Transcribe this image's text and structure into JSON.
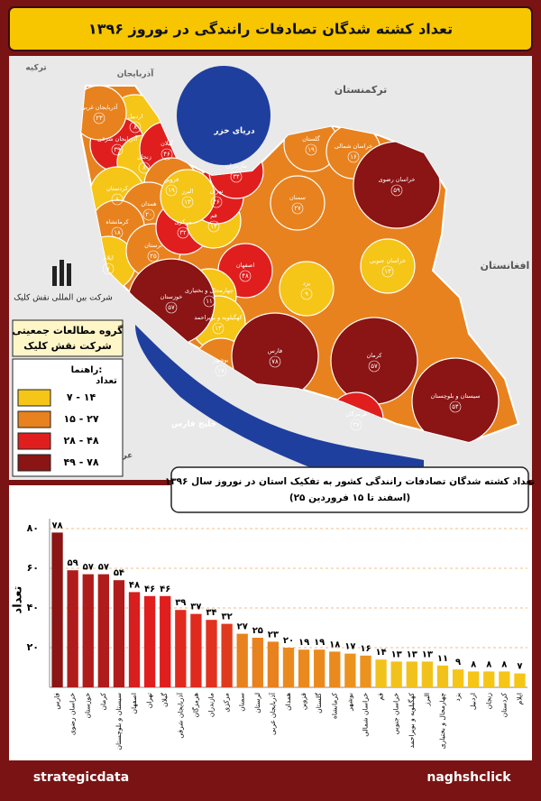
{
  "header": {
    "title": "تعداد کشته شدگان تصادفات رانندگی در نوروز ۱۳۹۶"
  },
  "map": {
    "labels": [
      "ترکمنستان",
      "افغانستان",
      "دریای خزر",
      "خلیج فارس",
      "عربستان سعودی",
      "ترکیه",
      "آذربایجان"
    ],
    "group": [
      "گروه مطالعات جمعیتی",
      "شرکت نقش کلیک"
    ],
    "logo": "شرکت بین المللی نقش کلیک",
    "legend": {
      "title": "راهنما:",
      "heading": "تعداد",
      "classes": [
        {
          "label": "۷ - ۱۴",
          "min": 7,
          "max": 14,
          "color": "#f5c518"
        },
        {
          "label": "۱۵ - ۲۷",
          "min": 15,
          "max": 27,
          "color": "#e8821e"
        },
        {
          "label": "۲۸ - ۴۸",
          "min": 28,
          "max": 48,
          "color": "#e01e1e"
        },
        {
          "label": "۴۹ - ۷۸",
          "min": 49,
          "max": 78,
          "color": "#8b1414"
        }
      ]
    },
    "provinces": [
      {
        "name": "اردبیل",
        "count": 8,
        "count_label": "۸"
      },
      {
        "name": "آذربایجان شرقی",
        "count": 39,
        "count_label": "۳۹"
      },
      {
        "name": "آذربایجان غربی",
        "count": 23,
        "count_label": "۲۳"
      },
      {
        "name": "زنجان",
        "count": 8,
        "count_label": "۸"
      },
      {
        "name": "گیلان",
        "count": 46,
        "count_label": "۴۶"
      },
      {
        "name": "قزوین",
        "count": 19,
        "count_label": "۱۹"
      },
      {
        "name": "کردستان",
        "count": 8,
        "count_label": "۸"
      },
      {
        "name": "همدان",
        "count": 20,
        "count_label": "۲۰"
      },
      {
        "name": "کرمانشاه",
        "count": 18,
        "count_label": "۱۸"
      },
      {
        "name": "ایلام",
        "count": 7,
        "count_label": "۷"
      },
      {
        "name": "لرستان",
        "count": 25,
        "count_label": "۲۵"
      },
      {
        "name": "مرکزی",
        "count": 32,
        "count_label": "۳۲"
      },
      {
        "name": "قم",
        "count": 14,
        "count_label": "۱۴"
      },
      {
        "name": "تهران",
        "count": 46,
        "count_label": "۴۶"
      },
      {
        "name": "البرز",
        "count": 13,
        "count_label": "۱۳"
      },
      {
        "name": "مازندران",
        "count": 34,
        "count_label": "۳۴"
      },
      {
        "name": "سمنان",
        "count": 27,
        "count_label": "۲۷"
      },
      {
        "name": "گلستان",
        "count": 19,
        "count_label": "۱۹"
      },
      {
        "name": "خراسان شمالی",
        "count": 16,
        "count_label": "۱۶"
      },
      {
        "name": "خراسان رضوی",
        "count": 59,
        "count_label": "۵۹"
      },
      {
        "name": "خراسان جنوبی",
        "count": 13,
        "count_label": "۱۳"
      },
      {
        "name": "یزد",
        "count": 9,
        "count_label": "۹"
      },
      {
        "name": "اصفهان",
        "count": 48,
        "count_label": "۴۸"
      },
      {
        "name": "چهارمحال و بختیاری",
        "count": 11,
        "count_label": "۱۱"
      },
      {
        "name": "کهگیلویه و بویراحمد",
        "count": 13,
        "count_label": "۱۳"
      },
      {
        "name": "خوزستان",
        "count": 57,
        "count_label": "۵۷"
      },
      {
        "name": "بوشهر",
        "count": 17,
        "count_label": "۱۷"
      },
      {
        "name": "فارس",
        "count": 78,
        "count_label": "۷۸"
      },
      {
        "name": "کرمان",
        "count": 57,
        "count_label": "۵۷"
      },
      {
        "name": "هرمزگان",
        "count": 37,
        "count_label": "۳۷"
      },
      {
        "name": "سیستان و بلوچستان",
        "count": 54,
        "count_label": "۵۴"
      }
    ]
  },
  "chart_data": {
    "type": "bar",
    "title": "تعداد کشته شدگان تصادفات رانندگی کشور به تفکیک استان در نوروز سال ۱۳۹۶",
    "subtitle": "(۲۵ اسفند تا ۱۵ فروردین)",
    "y_label": "تعداد",
    "categories": [
      "فارس",
      "خراسان رضوی",
      "خوزستان",
      "کرمان",
      "سیستان و بلوچستان",
      "اصفهان",
      "تهران",
      "گیلان",
      "آذربایجان شرقی",
      "هرمزگان",
      "مازندران",
      "مرکزی",
      "سمنان",
      "لرستان",
      "آذربایجان غربی",
      "همدان",
      "قزوین",
      "گلستان",
      "کرمانشاه",
      "بوشهر",
      "خراسان شمالی",
      "قم",
      "خراسان جنوبی",
      "کهگیلویه و بویراحمد",
      "البرز",
      "چهارمحال و بختیاری",
      "یزد",
      "اردبیل",
      "زنجان",
      "کردستان",
      "ایلام"
    ],
    "values": [
      78,
      59,
      57,
      57,
      54,
      48,
      46,
      46,
      39,
      37,
      34,
      32,
      27,
      25,
      23,
      20,
      19,
      19,
      18,
      17,
      16,
      14,
      13,
      13,
      13,
      11,
      9,
      8,
      8,
      8,
      7
    ],
    "value_labels": [
      "۷۸",
      "۵۹",
      "۵۷",
      "۵۷",
      "۵۴",
      "۴۸",
      "۴۶",
      "۴۶",
      "۳۹",
      "۳۷",
      "۳۴",
      "۳۲",
      "۲۷",
      "۲۵",
      "۲۳",
      "۲۰",
      "۱۹",
      "۱۹",
      "۱۸",
      "۱۷",
      "۱۶",
      "۱۴",
      "۱۳",
      "۱۳",
      "۱۳",
      "۱۱",
      "۹",
      "۸",
      "۸",
      "۸",
      "۷"
    ],
    "colors": [
      "#8b1414",
      "#b01c1c",
      "#b01c1c",
      "#b01c1c",
      "#b01c1c",
      "#d81e1e",
      "#e01e1e",
      "#e01e1e",
      "#e02a1e",
      "#e02a1e",
      "#e0321e",
      "#e03a1e",
      "#e8821e",
      "#e8821e",
      "#e8821e",
      "#ea8a1e",
      "#ea8a1e",
      "#ea8a1e",
      "#ea8a1e",
      "#ec921e",
      "#ec921e",
      "#f2c21c",
      "#f2c21c",
      "#f2c21c",
      "#f2c21c",
      "#f2c21c",
      "#f5c518",
      "#f5c518",
      "#f5c518",
      "#f5c518",
      "#f5c518"
    ],
    "ylim": [
      0,
      85
    ],
    "yticks": [
      {
        "value": 20,
        "label": "۲۰"
      },
      {
        "value": 40,
        "label": "۴۰"
      },
      {
        "value": 60,
        "label": "۶۰"
      },
      {
        "value": 80,
        "label": "۸۰"
      }
    ],
    "grid": true
  },
  "footer": {
    "left": "strategicdata",
    "right": "naghshclick"
  }
}
